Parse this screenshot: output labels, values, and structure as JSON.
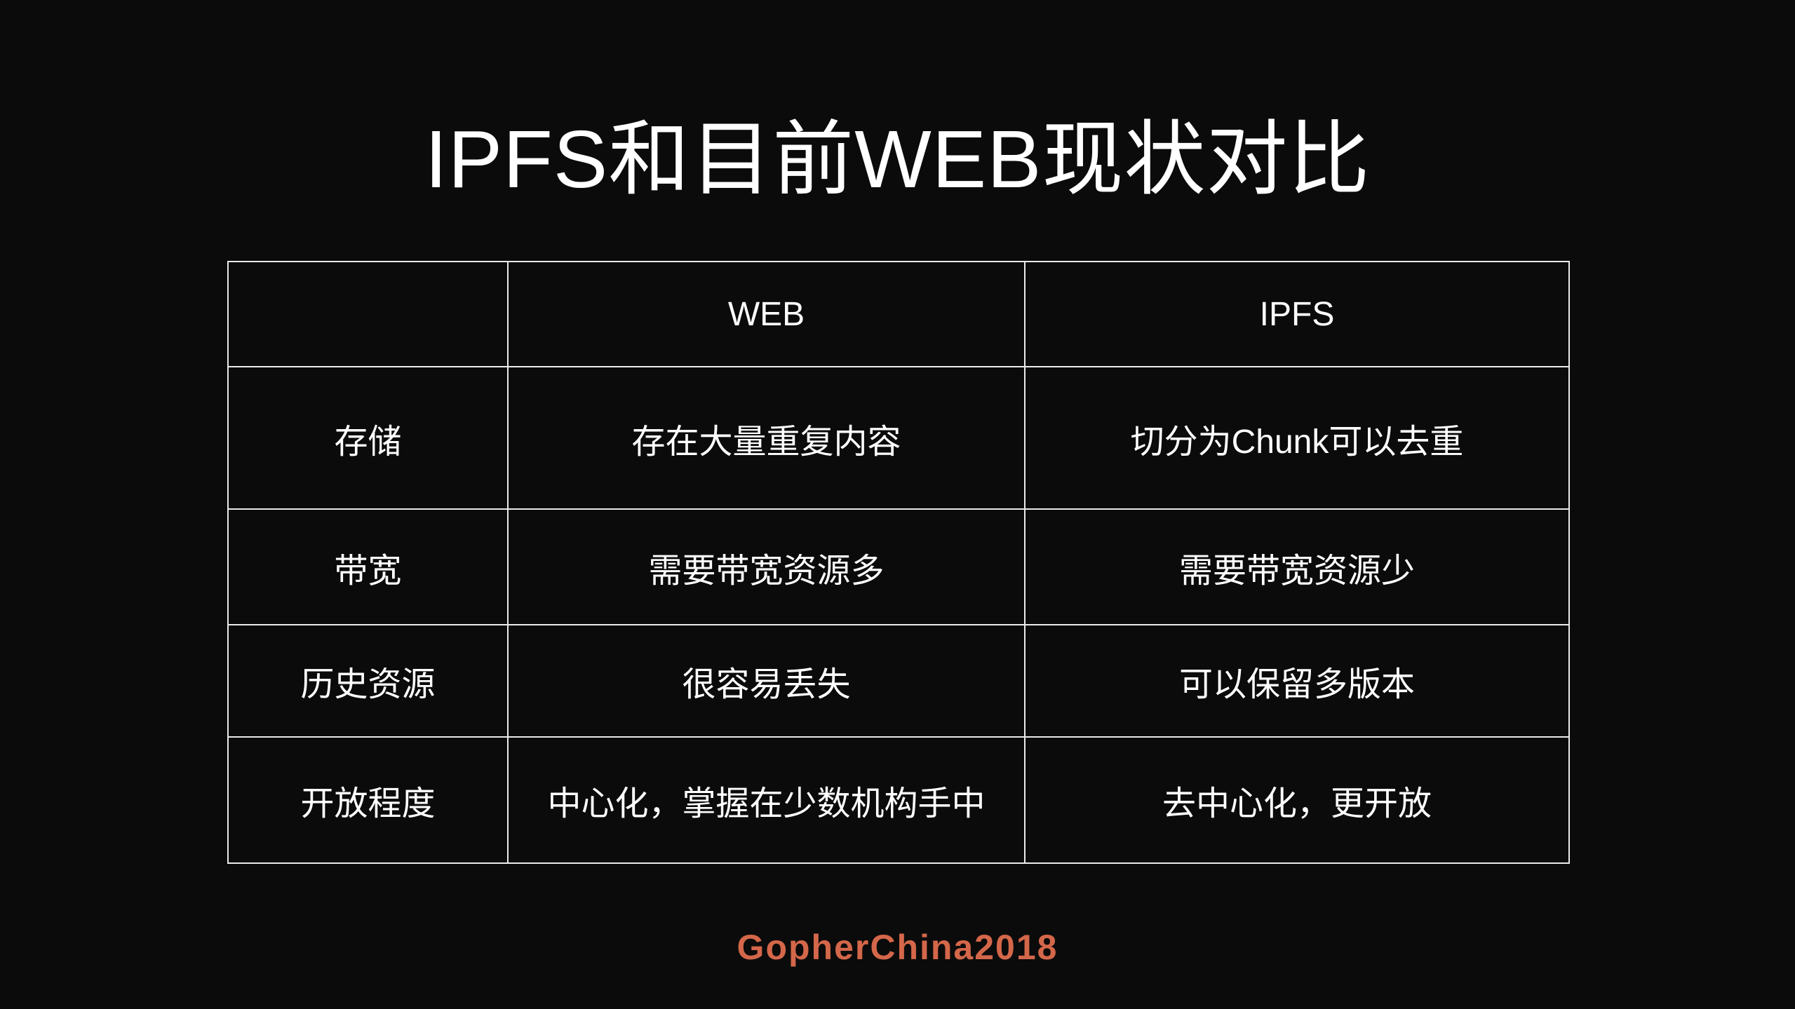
{
  "slide": {
    "title": "IPFS和目前WEB现状对比",
    "footer": "GopherChina2018"
  },
  "colors": {
    "background": "#0b0b0b",
    "text": "#ffffff",
    "table_border": "#ebebeb",
    "footer_accent": "#d4674a"
  },
  "table": {
    "columns": [
      "",
      "WEB",
      "IPFS"
    ],
    "rows": [
      {
        "label": "存储",
        "web": "存在大量重复内容",
        "ipfs": "切分为Chunk可以去重"
      },
      {
        "label": "带宽",
        "web": "需要带宽资源多",
        "ipfs": "需要带宽资源少"
      },
      {
        "label": "历史资源",
        "web": "很容易丢失",
        "ipfs": "可以保留多版本"
      },
      {
        "label": "开放程度",
        "web": "中心化，掌握在少数机构手中",
        "ipfs": "去中心化，更开放"
      }
    ]
  }
}
